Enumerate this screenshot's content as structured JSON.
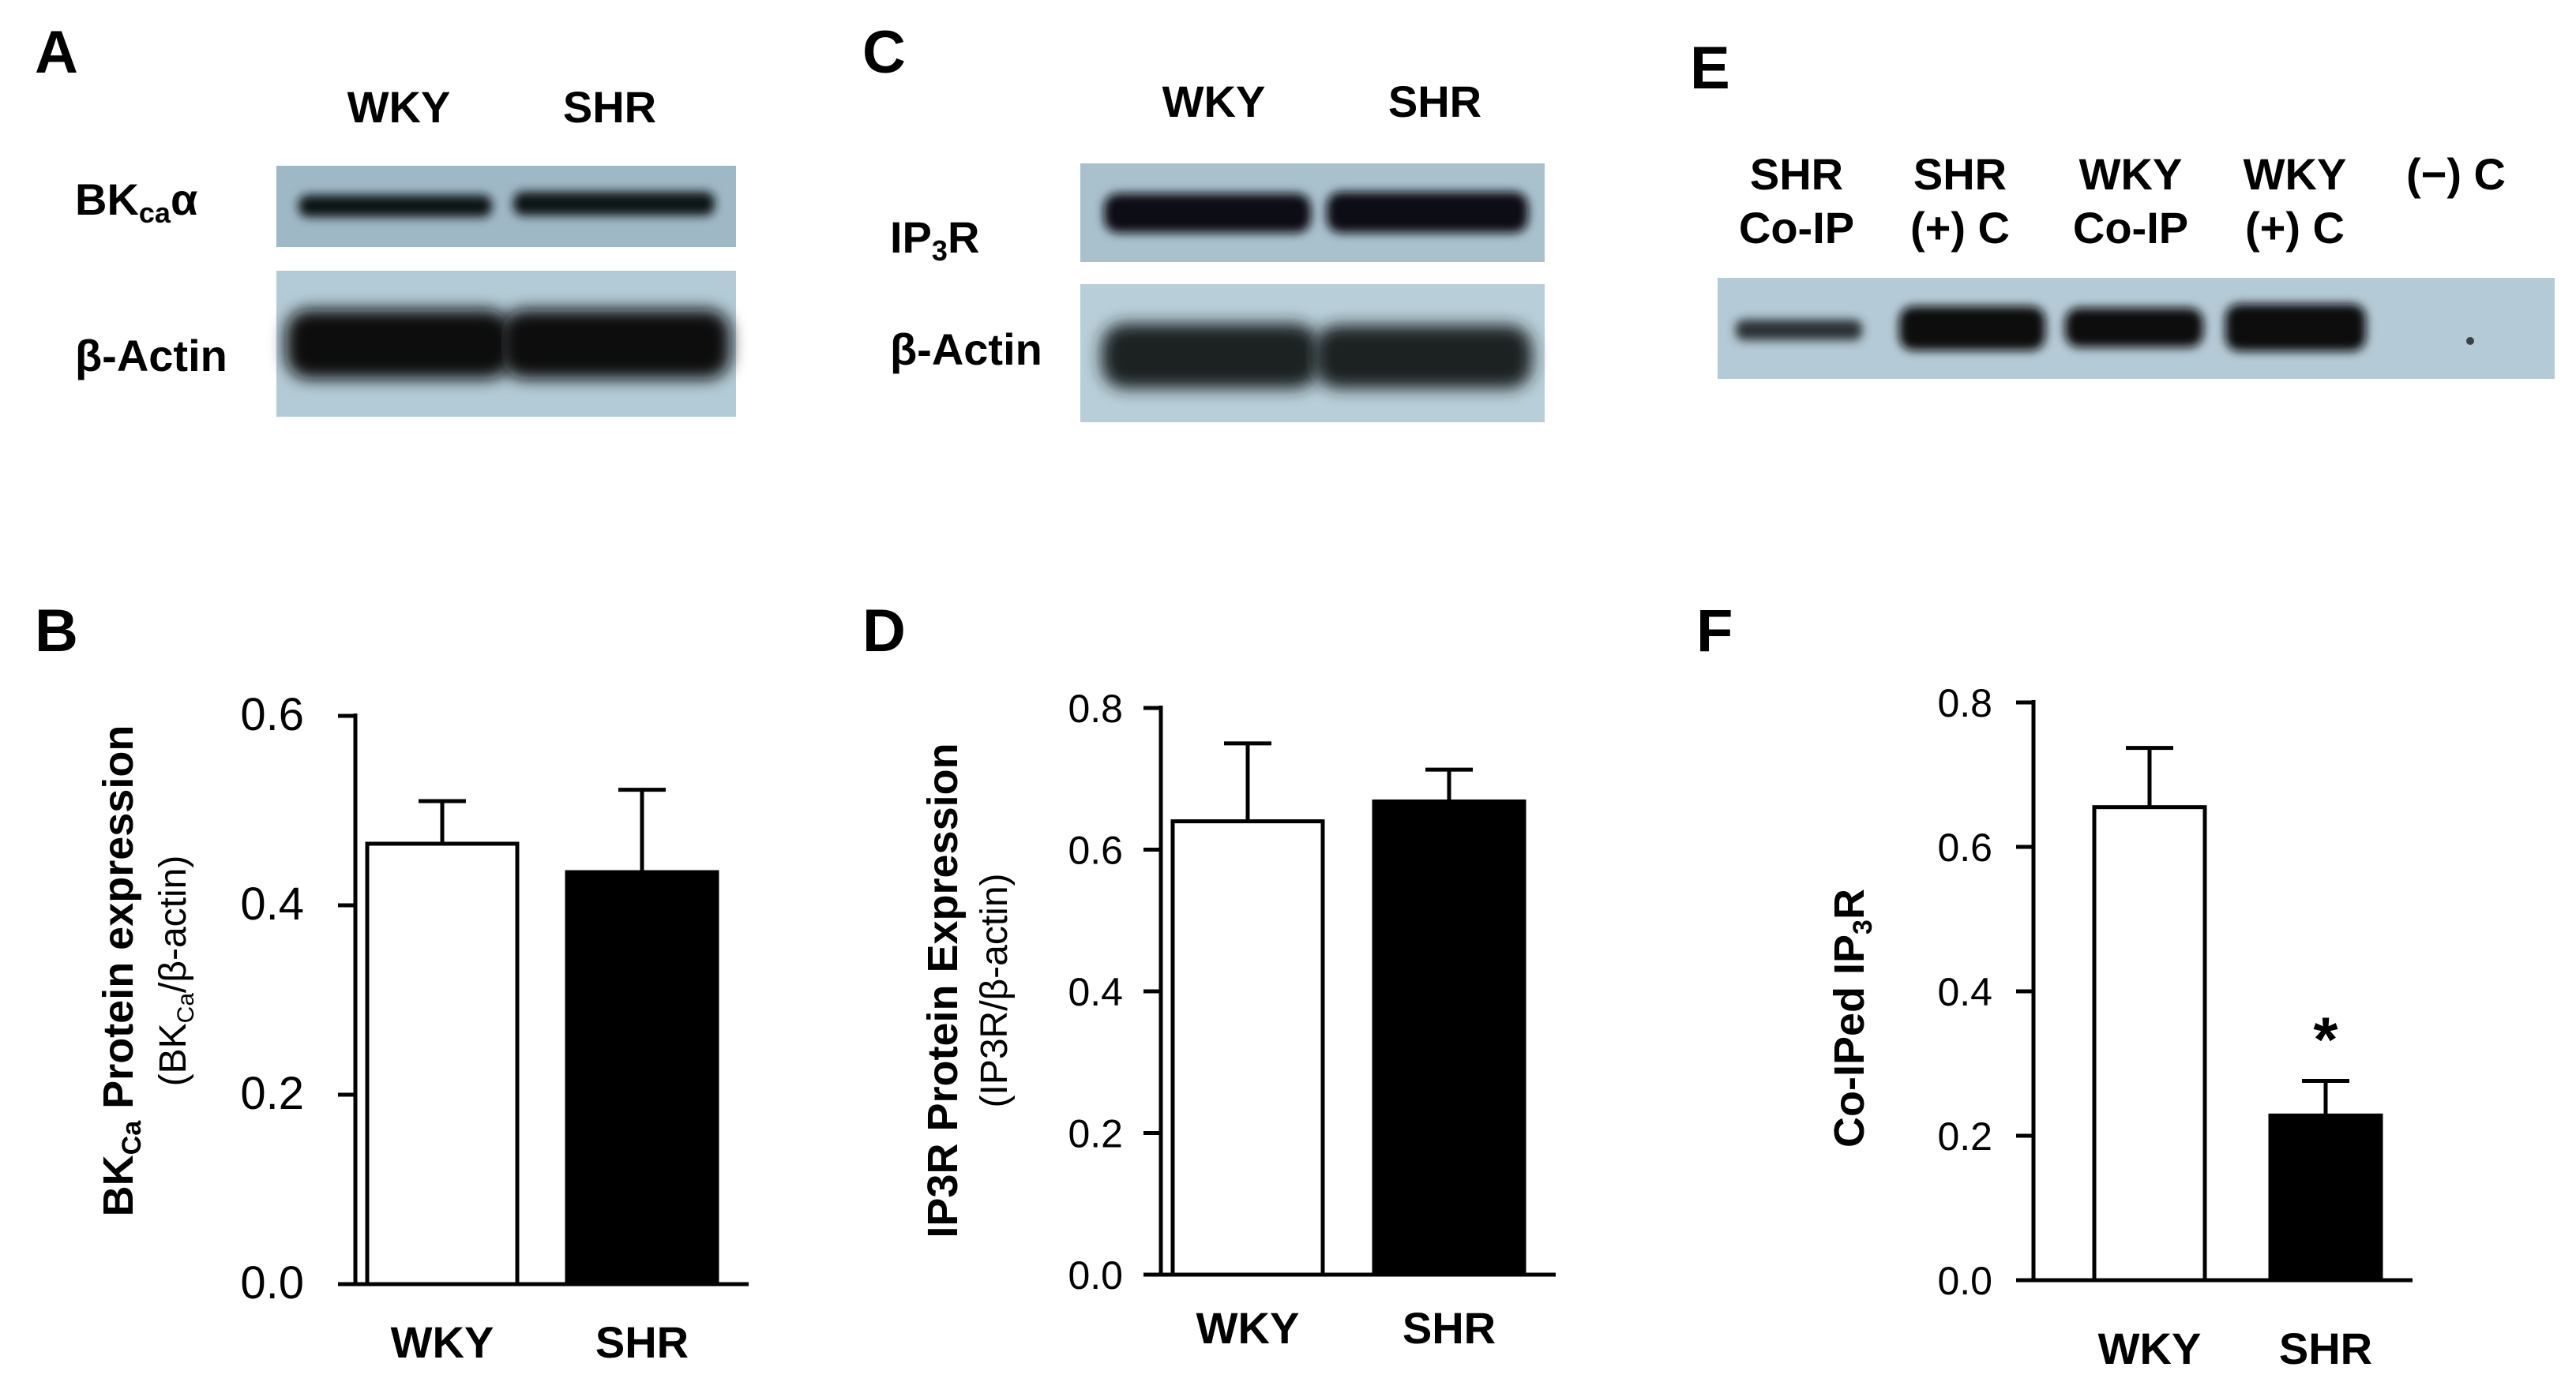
{
  "panels": {
    "A": {
      "letter": "A",
      "lanes": [
        "WKY",
        "SHR"
      ],
      "rows": [
        {
          "label_main": "BK",
          "label_sub": "ca",
          "label_tail": "α"
        },
        {
          "label_main": "β-Actin",
          "label_sub": "",
          "label_tail": ""
        }
      ]
    },
    "C": {
      "letter": "C",
      "lanes": [
        "WKY",
        "SHR"
      ],
      "rows": [
        {
          "label_main": "IP",
          "label_sub": "3",
          "label_tail": "R"
        },
        {
          "label_main": "β-Actin",
          "label_sub": "",
          "label_tail": ""
        }
      ]
    },
    "E": {
      "letter": "E",
      "lanes": [
        {
          "line1": "SHR",
          "line2": "Co-IP"
        },
        {
          "line1": "SHR",
          "line2": "(+) C"
        },
        {
          "line1": "WKY",
          "line2": "Co-IP"
        },
        {
          "line1": "WKY",
          "line2": "(+) C"
        },
        {
          "line1": "(−) C",
          "line2": ""
        }
      ]
    }
  },
  "chart_data": [
    {
      "panel": "B",
      "type": "bar",
      "categories": [
        "WKY",
        "SHR"
      ],
      "values": [
        0.465,
        0.435
      ],
      "errors": [
        0.045,
        0.087
      ],
      "colors": [
        "#ffffff",
        "#000000"
      ],
      "ylim": [
        0,
        0.6
      ],
      "yticks": [
        "0.0",
        "0.2",
        "0.4",
        "0.6"
      ],
      "ylabel_main": "BK",
      "ylabel_sub": "Ca",
      "ylabel_tail": " Protein expression",
      "ylabel2_main": "(BK",
      "ylabel2_sub": "Ca",
      "ylabel2_tail": "/β-actin)",
      "annotations": []
    },
    {
      "panel": "D",
      "type": "bar",
      "categories": [
        "WKY",
        "SHR"
      ],
      "values": [
        0.64,
        0.668
      ],
      "errors": [
        0.11,
        0.045
      ],
      "colors": [
        "#ffffff",
        "#000000"
      ],
      "ylim": [
        0,
        0.8
      ],
      "yticks": [
        "0.0",
        "0.2",
        "0.4",
        "0.6",
        "0.8"
      ],
      "ylabel_main": "IP3R Protein Expression",
      "ylabel_sub": "",
      "ylabel_tail": "",
      "ylabel2_main": "(IP3R/β-actin)",
      "ylabel2_sub": "",
      "ylabel2_tail": "",
      "annotations": []
    },
    {
      "panel": "F",
      "type": "bar",
      "categories": [
        "WKY",
        "SHR"
      ],
      "values": [
        0.655,
        0.228
      ],
      "errors": [
        0.082,
        0.048
      ],
      "colors": [
        "#ffffff",
        "#000000"
      ],
      "ylim": [
        0,
        0.8
      ],
      "yticks": [
        "0.0",
        "0.2",
        "0.4",
        "0.6",
        "0.8"
      ],
      "ylabel_main": "Co-IPed IP",
      "ylabel_sub": "3",
      "ylabel_tail": "R",
      "ylabel2_main": "",
      "ylabel2_sub": "",
      "ylabel2_tail": "",
      "annotations": [
        {
          "category": "SHR",
          "text": "*"
        }
      ]
    }
  ],
  "chart_letters": [
    "B",
    "D",
    "F"
  ]
}
